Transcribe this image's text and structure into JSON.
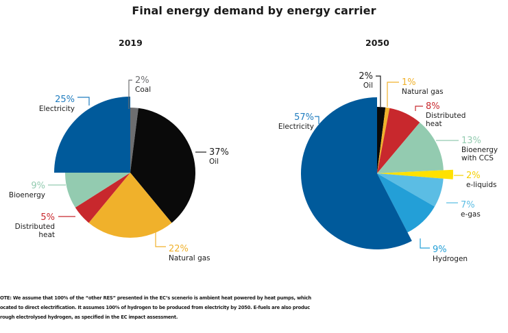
{
  "title": "Final energy demand by energy carrier",
  "chart_data": [
    {
      "type": "pie",
      "title": "2019",
      "unit": "%",
      "slices": [
        {
          "label": "Coal",
          "value": 2,
          "color": "#6d6e70",
          "exploded": false
        },
        {
          "label": "Oil",
          "value": 37,
          "color": "#0a0a0a",
          "exploded": false
        },
        {
          "label": "Natural gas",
          "value": 22,
          "color": "#f0b12b",
          "exploded": false
        },
        {
          "label": "Distributed heat",
          "value": 5,
          "color": "#c8282d",
          "exploded": false
        },
        {
          "label": "Bioenergy",
          "value": 9,
          "color": "#93cbb0",
          "exploded": false
        },
        {
          "label": "Electricity",
          "value": 25,
          "color": "#005a9b",
          "exploded": true
        }
      ],
      "label_colors": {
        "Coal": "#6d6e70",
        "Oil": "#1a1a1a",
        "Natural gas": "#f0b12b",
        "Distributed heat": "#c8282d",
        "Bioenergy": "#93cbb0",
        "Electricity": "#1f7cbf"
      }
    },
    {
      "type": "pie",
      "title": "2050",
      "unit": "%",
      "slices": [
        {
          "label": "Oil",
          "value": 2,
          "color": "#0a0a0a",
          "exploded": false
        },
        {
          "label": "Natural gas",
          "value": 1,
          "color": "#f0b12b",
          "exploded": false
        },
        {
          "label": "Distributed heat",
          "value": 8,
          "color": "#c8282d",
          "exploded": false
        },
        {
          "label": "Bioenergy with CCS",
          "value": 13,
          "color": "#93cbb0",
          "exploded": false
        },
        {
          "label": "e-liquids",
          "value": 2,
          "color": "#ffe100",
          "exploded": true
        },
        {
          "label": "e-gas",
          "value": 7,
          "color": "#5bbde4",
          "exploded": false
        },
        {
          "label": "Hydrogen",
          "value": 9,
          "color": "#239fd7",
          "exploded": false
        },
        {
          "label": "Electricity",
          "value": 57,
          "color": "#005a9b",
          "exploded": true
        }
      ],
      "label_colors": {
        "Oil": "#1a1a1a",
        "Natural gas": "#f0b12b",
        "Distributed heat": "#c8282d",
        "Bioenergy with CCS": "#93cbb0",
        "e-liquids": "#f5d000",
        "e-gas": "#5bbde4",
        "Hydrogen": "#239fd7",
        "Electricity": "#1f7cbf"
      }
    }
  ],
  "note": {
    "lines": [
      "OTE: We assume that 100% of the “other RES” presented in the EC’s scenerio is ambient heat powered by heat pumps, which",
      "ocated to direct electrification. It assumes 100% of hydrogen to be produced from electricity by 2050. E-fuels are also produc",
      "rough electrolysed hydrogen, as specified in the EC impact assessment."
    ]
  }
}
